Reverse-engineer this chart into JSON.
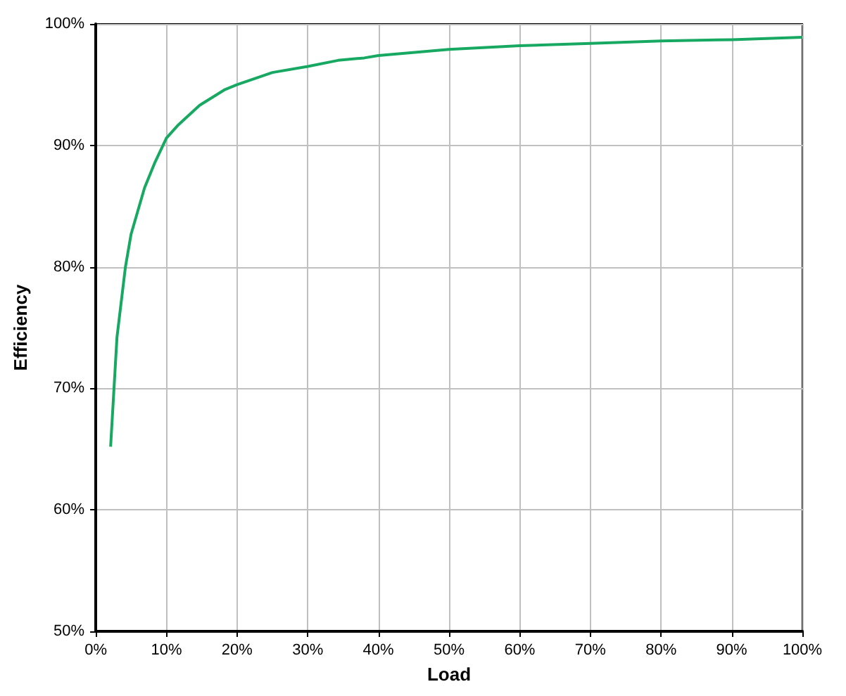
{
  "chart_data": {
    "type": "line",
    "xlabel": "Load",
    "ylabel": "Efficiency",
    "x": [
      2.1,
      3,
      4.2,
      5,
      6.9,
      8.3,
      10,
      11.7,
      14.7,
      18.3,
      20,
      25,
      30,
      34.3,
      38,
      40,
      50,
      60,
      70,
      80,
      90,
      100
    ],
    "series": [
      {
        "color": "#17a862",
        "values": [
          65.2,
          74.2,
          80,
          82.7,
          86.5,
          88.5,
          90.6,
          91.7,
          93.3,
          94.6,
          95.0,
          96.0,
          96.5,
          97.0,
          97.2,
          97.4,
          97.9,
          98.2,
          98.4,
          98.6,
          98.7,
          98.9
        ]
      }
    ],
    "xlim": [
      0,
      100
    ],
    "xticks": [
      {
        "value": 0,
        "label": "0%"
      },
      {
        "value": 10,
        "label": "10%"
      },
      {
        "value": 20,
        "label": "20%"
      },
      {
        "value": 30,
        "label": "30%"
      },
      {
        "value": 40,
        "label": "40%"
      },
      {
        "value": 50,
        "label": "50%"
      },
      {
        "value": 60,
        "label": "60%"
      },
      {
        "value": 70,
        "label": "70%"
      },
      {
        "value": 80,
        "label": "80%"
      },
      {
        "value": 90,
        "label": "90%"
      },
      {
        "value": 100,
        "label": "100%"
      }
    ],
    "ylim": [
      50,
      100
    ],
    "yticks": [
      {
        "value": 50,
        "label": "50%"
      },
      {
        "value": 60,
        "label": "60%"
      },
      {
        "value": 70,
        "label": "70%"
      },
      {
        "value": 80,
        "label": "80%"
      },
      {
        "value": 90,
        "label": "90%"
      },
      {
        "value": 100,
        "label": "100%"
      }
    ],
    "grid": true,
    "marker": "none",
    "line_style": "solid"
  }
}
